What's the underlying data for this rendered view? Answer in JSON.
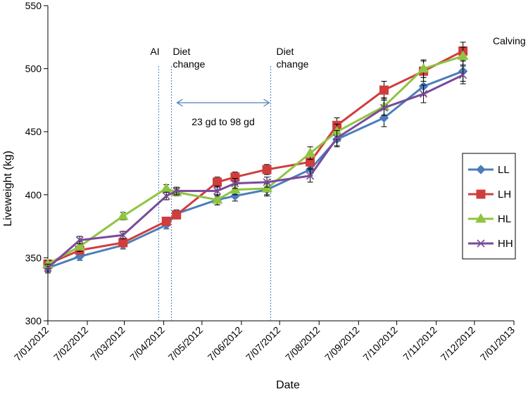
{
  "chart_data": {
    "type": "line",
    "title": "",
    "xlabel": "Date",
    "ylabel": "Liveweight (kg)",
    "ylim": [
      300,
      550
    ],
    "yticks": [
      300,
      350,
      400,
      450,
      500,
      550
    ],
    "xlim": [
      "2012-01-07",
      "2013-01-07"
    ],
    "xticks": [
      "2012-01-07",
      "2012-02-07",
      "2012-03-07",
      "2012-04-07",
      "2012-05-07",
      "2012-06-07",
      "2012-07-07",
      "2012-08-07",
      "2012-09-07",
      "2012-10-07",
      "2012-11-07",
      "2012-12-07",
      "2013-01-07"
    ],
    "xtick_labels": [
      "7/01/2012",
      "7/02/2012",
      "7/03/2012",
      "7/04/2012",
      "7/05/2012",
      "7/06/2012",
      "7/07/2012",
      "7/08/2012",
      "7/09/2012",
      "7/10/2012",
      "7/11/2012",
      "7/12/2012",
      "7/01/2013"
    ],
    "grid": false,
    "legend_position": "right",
    "series": [
      {
        "name": "LL",
        "color": "#4a7ebb",
        "marker": "diamond",
        "x": [
          "2012-01-07",
          "2012-02-01",
          "2012-03-06",
          "2012-04-09",
          "2012-04-17",
          "2012-05-19",
          "2012-06-02",
          "2012-06-27",
          "2012-07-31",
          "2012-08-21",
          "2012-09-27",
          "2012-10-28",
          "2012-11-28"
        ],
        "y": [
          342,
          351,
          360,
          376,
          385,
          396,
          399,
          404,
          420,
          444,
          461,
          486,
          498
        ],
        "err": [
          4,
          3,
          3,
          3,
          3,
          4,
          4,
          5,
          5,
          6,
          7,
          7,
          8
        ]
      },
      {
        "name": "LH",
        "color": "#d03d3d",
        "marker": "square",
        "x": [
          "2012-01-07",
          "2012-02-01",
          "2012-03-06",
          "2012-04-09",
          "2012-04-17",
          "2012-05-19",
          "2012-06-02",
          "2012-06-27",
          "2012-07-31",
          "2012-08-21",
          "2012-09-27",
          "2012-10-28",
          "2012-11-28"
        ],
        "y": [
          345,
          356,
          362,
          379,
          384,
          410,
          414,
          420,
          426,
          455,
          483,
          498,
          514
        ],
        "err": [
          3,
          3,
          3,
          3,
          3,
          4,
          4,
          4,
          5,
          6,
          7,
          8,
          7
        ]
      },
      {
        "name": "HL",
        "color": "#8fc442",
        "marker": "triangle",
        "x": [
          "2012-01-07",
          "2012-02-01",
          "2012-03-06",
          "2012-04-09",
          "2012-04-17",
          "2012-05-19",
          "2012-06-02",
          "2012-06-27",
          "2012-07-31",
          "2012-08-21",
          "2012-09-27",
          "2012-10-28",
          "2012-11-28"
        ],
        "y": [
          345,
          359,
          383,
          405,
          402,
          396,
          404,
          405,
          433,
          450,
          470,
          500,
          510
        ],
        "err": [
          3,
          4,
          3,
          3,
          3,
          4,
          4,
          5,
          5,
          6,
          7,
          7,
          7
        ]
      },
      {
        "name": "HH",
        "color": "#7a4a9a",
        "marker": "x",
        "x": [
          "2012-01-07",
          "2012-02-01",
          "2012-03-06",
          "2012-04-09",
          "2012-04-17",
          "2012-05-19",
          "2012-06-02",
          "2012-06-27",
          "2012-07-31",
          "2012-08-21",
          "2012-09-27",
          "2012-10-28",
          "2012-11-28"
        ],
        "y": [
          342,
          364,
          368,
          399,
          403,
          403,
          409,
          410,
          415,
          445,
          469,
          480,
          495
        ],
        "err": [
          3,
          3,
          3,
          3,
          3,
          4,
          4,
          4,
          5,
          6,
          6,
          7,
          7
        ]
      }
    ],
    "vlines": [
      {
        "label": "AI",
        "x": "2012-04-03"
      },
      {
        "label": "Diet change",
        "x": "2012-04-13"
      },
      {
        "label": "Diet change",
        "x": "2012-06-30"
      }
    ],
    "annotations": [
      {
        "text": "23 gd to 98 gd",
        "type": "double-arrow",
        "x_from": "2012-04-13",
        "x_to": "2012-06-30",
        "y": 473
      },
      {
        "text": "Calving",
        "x": "2012-12-12",
        "y": 517
      }
    ]
  }
}
